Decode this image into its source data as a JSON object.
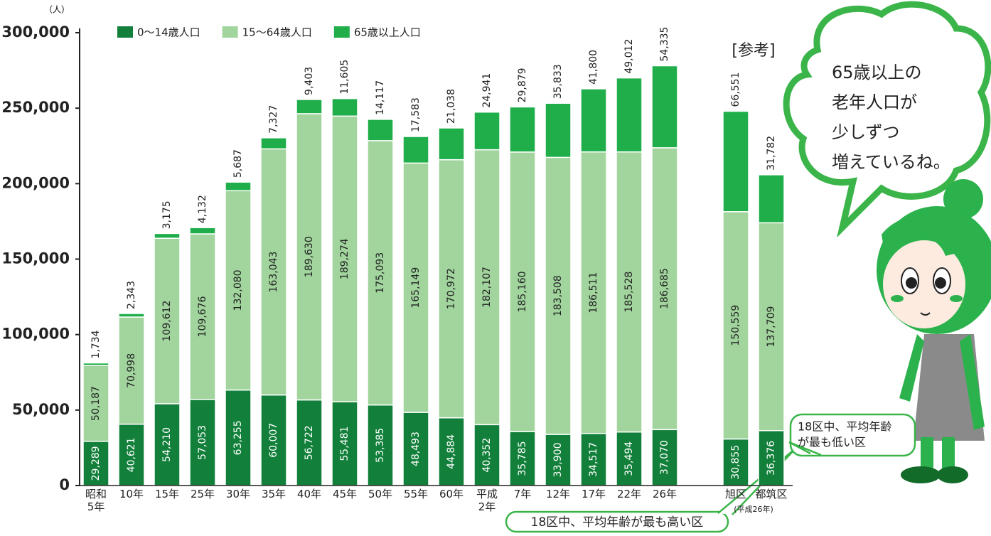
{
  "chart_data": {
    "type": "stacked-bar",
    "unit": "（人）",
    "categories": [
      "昭和\n5年",
      "10年",
      "15年",
      "25年",
      "30年",
      "35年",
      "40年",
      "45年",
      "50年",
      "55年",
      "60年",
      "平成\n2年",
      "7年",
      "12年",
      "17年",
      "22年",
      "26年",
      null,
      "旭区",
      "都筑区"
    ],
    "series": [
      {
        "name": "0〜14歳人口",
        "color": "#12803a",
        "values": [
          29289,
          40621,
          54210,
          57053,
          63255,
          60007,
          56722,
          55481,
          53385,
          48493,
          44884,
          40352,
          35785,
          33900,
          34517,
          35494,
          37070,
          null,
          30855,
          36376
        ],
        "value_labels": [
          "29,289",
          "40,621",
          "54,210",
          "57,053",
          "63,255",
          "60,007",
          "56,722",
          "55,481",
          "53,385",
          "48,493",
          "44,884",
          "40,352",
          "35,785",
          "33,900",
          "34,517",
          "35,494",
          "37,070",
          null,
          "30,855",
          "36,376"
        ]
      },
      {
        "name": "15〜64歳人口",
        "color": "#a1d59d",
        "values": [
          50187,
          70998,
          109612,
          109676,
          132080,
          163043,
          189630,
          189274,
          175093,
          165149,
          170972,
          182107,
          185160,
          183508,
          186511,
          185528,
          186685,
          null,
          150559,
          137709
        ],
        "value_labels": [
          "50,187",
          "70,998",
          "109,612",
          "109,676",
          "132,080",
          "163,043",
          "189,630",
          "189,274",
          "175,093",
          "165,149",
          "170,972",
          "182,107",
          "185,160",
          "183,508",
          "186,511",
          "185,528",
          "186,685",
          null,
          "150,559",
          "137,709"
        ]
      },
      {
        "name": "65歳以上人口",
        "color": "#1fae4a",
        "values": [
          1734,
          2343,
          3175,
          4132,
          5687,
          7327,
          9403,
          11605,
          14117,
          17583,
          21038,
          24941,
          29879,
          35833,
          41800,
          49012,
          54335,
          null,
          66551,
          31782
        ],
        "value_labels": [
          "1,734",
          "2,343",
          "3,175",
          "4,132",
          "5,687",
          "7,327",
          "9,403",
          "11,605",
          "14,117",
          "17,583",
          "21,038",
          "24,941",
          "29,879",
          "35,833",
          "41,800",
          "49,012",
          "54,335",
          null,
          "66,551",
          "31,782"
        ]
      }
    ],
    "ylim": [
      0,
      300000
    ],
    "yticks": [
      0,
      {
        "value": 50000,
        "label": "50,000"
      },
      {
        "value": 100000,
        "label": "100,000"
      },
      {
        "value": 150000,
        "label": "150,000"
      },
      {
        "value": 200000,
        "label": "200,000"
      },
      {
        "value": 250000,
        "label": "250,000"
      },
      {
        "value": 300000,
        "label": "300,000"
      }
    ],
    "grid": false,
    "reference_label": "[参考]",
    "note": "(平成26年)",
    "bubble_text": [
      "65歳以上の",
      "老年人口が",
      "少しずつ",
      "増えているね。"
    ],
    "callout_high": "18区中、平均年齢が最も高い区",
    "callout_low": [
      "18区中、平均年齢",
      "が最も低い区"
    ]
  }
}
